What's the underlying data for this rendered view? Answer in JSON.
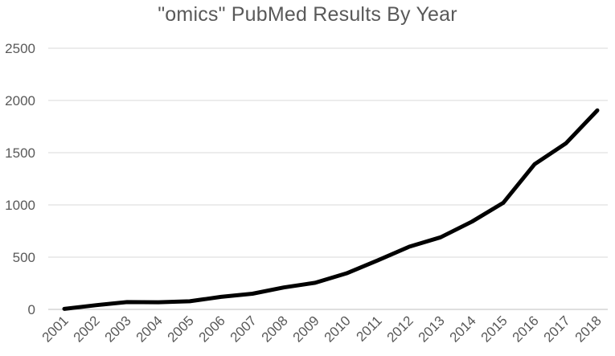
{
  "chart_data": {
    "type": "line",
    "title": "\"omics\" PubMed Results By Year",
    "xlabel": "",
    "ylabel": "",
    "x": [
      "2001",
      "2002",
      "2003",
      "2004",
      "2005",
      "2006",
      "2007",
      "2008",
      "2009",
      "2010",
      "2011",
      "2012",
      "2013",
      "2014",
      "2015",
      "2016",
      "2017",
      "2018"
    ],
    "series": [
      {
        "values": [
          5,
          40,
          70,
          68,
          78,
          120,
          150,
          210,
          255,
          345,
          470,
          600,
          690,
          840,
          1020,
          1390,
          1590,
          1905
        ]
      }
    ],
    "ylim": [
      0,
      2500
    ],
    "yticks": [
      "0",
      "500",
      "1000",
      "1500",
      "2000",
      "2500"
    ],
    "grid": true,
    "legend": "none",
    "colors": {
      "line": "#000000",
      "grid": "#d9d9d9",
      "text": "#595959"
    }
  }
}
